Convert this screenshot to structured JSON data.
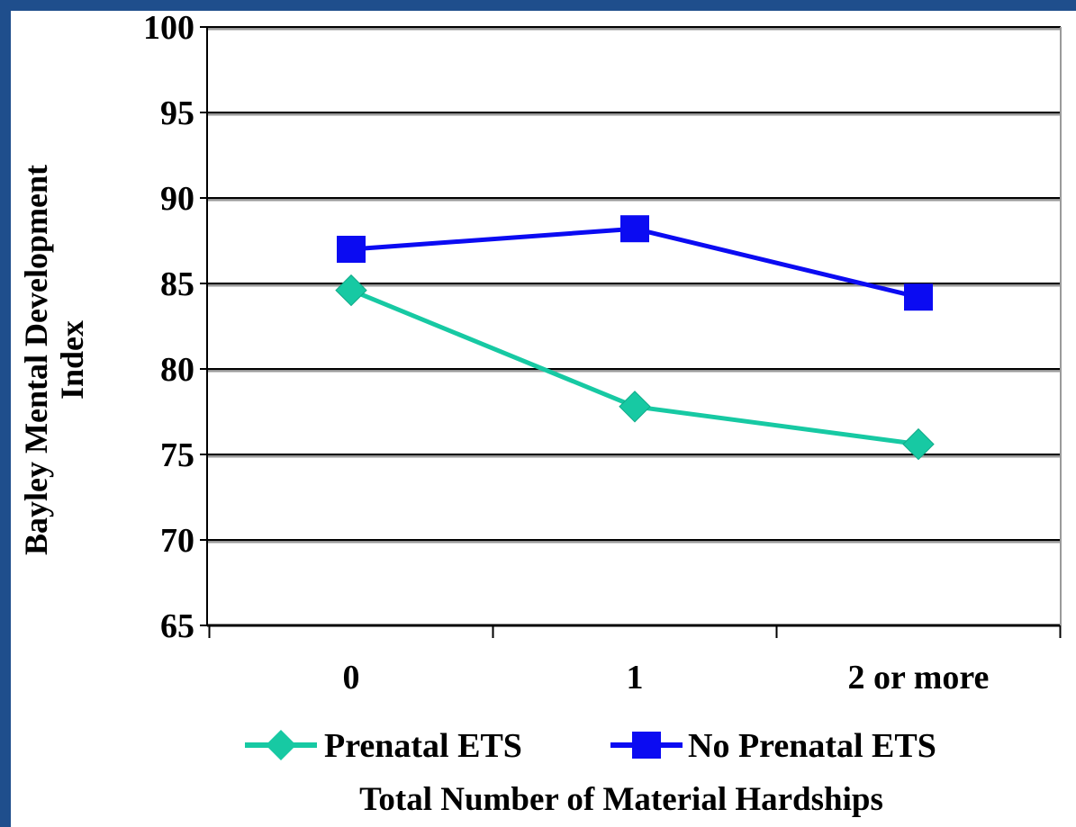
{
  "chart_data": {
    "type": "line",
    "categories": [
      "0",
      "1",
      "2 or more"
    ],
    "series": [
      {
        "name": "Prenatal ETS",
        "values": [
          84.6,
          77.8,
          75.6
        ],
        "color": "#17c9a3",
        "marker": "diamond"
      },
      {
        "name": "No Prenatal ETS",
        "values": [
          87.0,
          88.2,
          84.2
        ],
        "color": "#0b0bf2",
        "marker": "square"
      }
    ],
    "ylabel_lines": [
      "Bayley Mental Development",
      "Index"
    ],
    "xlabel": "Total Number of Material Hardships",
    "ylim": [
      65,
      100
    ],
    "yticks": [
      65,
      70,
      75,
      80,
      85,
      90,
      95,
      100
    ],
    "grid": true,
    "legend_position": "bottom"
  },
  "colors": {
    "frame": "#1f4e8c",
    "grid": "#000000"
  }
}
